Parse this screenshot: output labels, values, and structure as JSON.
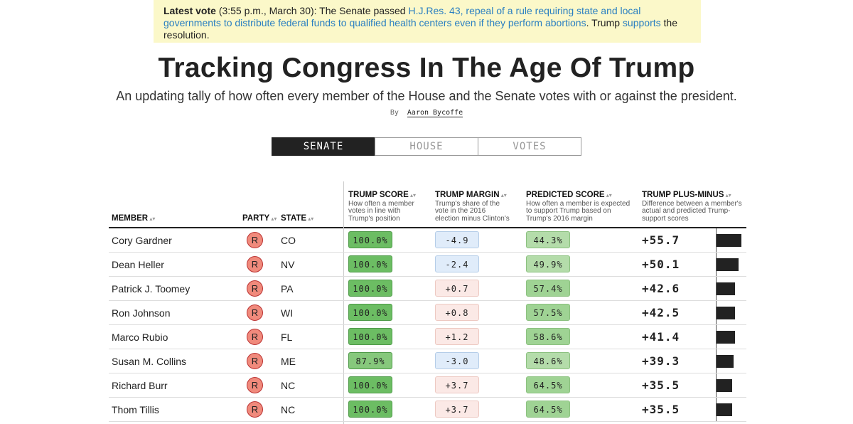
{
  "banner": {
    "label": "Latest vote",
    "text_1": "(3:55 p.m., March 30): The Senate passed",
    "link_1": "H.J.Res. 43, repeal of a rule requiring state and local governments to distribute federal funds to qualified health centers even if they perform abortions",
    "text_2": ". Trump",
    "link_2": "supports",
    "text_3": "the resolution."
  },
  "header": {
    "title": "Tracking Congress In The Age Of Trump",
    "subtitle": "An updating tally of how often every member of the House and the Senate votes with or against the president.",
    "byline_prefix": "By",
    "author": "Aaron Bycoffe"
  },
  "tabs": [
    "SENATE",
    "HOUSE",
    "VOTES"
  ],
  "table": {
    "columns": [
      {
        "title": "MEMBER"
      },
      {
        "title": "PARTY"
      },
      {
        "title": "STATE"
      },
      {
        "title": "TRUMP SCORE",
        "description": "How often a member votes in line with Trump's position"
      },
      {
        "title": "TRUMP MARGIN",
        "description": "Trump's share of the vote in the 2016 election minus Clinton's"
      },
      {
        "title": "PREDICTED SCORE",
        "description": "How often a member is expected to support Trump based on Trump's 2016 margin"
      },
      {
        "title": "TRUMP PLUS-MINUS",
        "description": "Difference between a member's actual and predicted Trump-support scores"
      }
    ],
    "rows": [
      [
        "Cory Gardner",
        "R",
        "CO",
        "100.0%",
        "-4.9",
        "44.3%",
        "+55.7"
      ],
      [
        "Dean Heller",
        "R",
        "NV",
        "100.0%",
        "-2.4",
        "49.9%",
        "+50.1"
      ],
      [
        "Patrick J. Toomey",
        "R",
        "PA",
        "100.0%",
        "+0.7",
        "57.4%",
        "+42.6"
      ],
      [
        "Ron Johnson",
        "R",
        "WI",
        "100.0%",
        "+0.8",
        "57.5%",
        "+42.5"
      ],
      [
        "Marco Rubio",
        "R",
        "FL",
        "100.0%",
        "+1.2",
        "58.6%",
        "+41.4"
      ],
      [
        "Susan M. Collins",
        "R",
        "ME",
        "87.9%",
        "-3.0",
        "48.6%",
        "+39.3"
      ],
      [
        "Richard Burr",
        "R",
        "NC",
        "100.0%",
        "+3.7",
        "64.5%",
        "+35.5"
      ],
      [
        "Thom Tillis",
        "R",
        "NC",
        "100.0%",
        "+3.7",
        "64.5%",
        "+35.5"
      ]
    ]
  }
}
